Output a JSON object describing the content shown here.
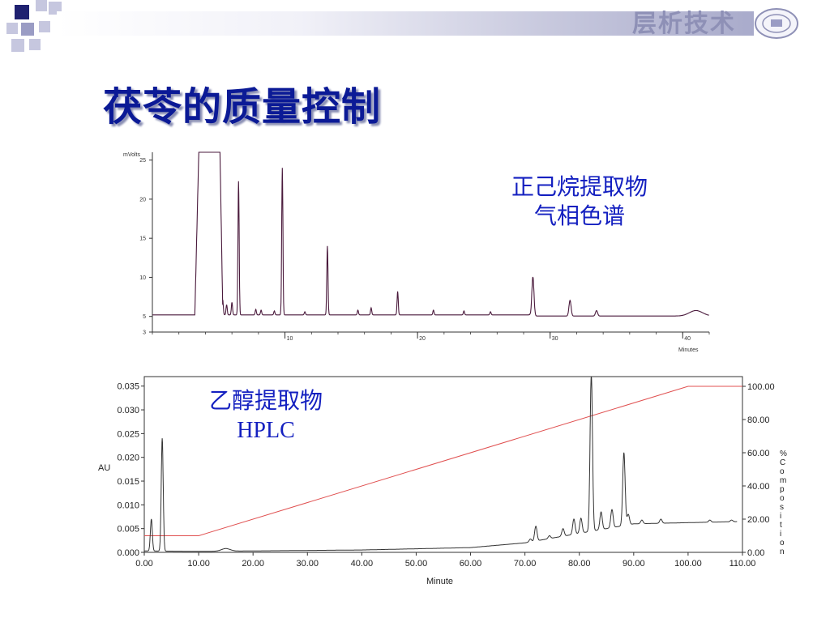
{
  "header": {
    "brand": "层析技术"
  },
  "slide": {
    "title": "茯苓的质量控制"
  },
  "colors": {
    "title": "#0b1a96",
    "caption": "#1420c0",
    "gc_trace": "#4a1a3c",
    "gradient_line": "#e05050"
  },
  "chart_data": [
    {
      "type": "line",
      "caption": [
        "正己烷提取物",
        "气相色谱"
      ],
      "ylabel": "mVolts",
      "xlabel": "Minutes",
      "xlim": [
        0,
        42
      ],
      "ylim": [
        3,
        26
      ],
      "y_ticks": [
        "25",
        "20",
        "15",
        "10",
        "5",
        "3"
      ],
      "x_ticks": [
        "10",
        "20",
        "30",
        "40"
      ],
      "baseline": 5.2,
      "solvent_front": [
        [
          3.2,
          5.2
        ],
        [
          3.5,
          26
        ],
        [
          5.1,
          26
        ],
        [
          5.3,
          6.5
        ]
      ],
      "peaks": [
        {
          "x": 5.3,
          "y": 7.3
        },
        {
          "x": 5.6,
          "y": 6.5
        },
        {
          "x": 6.0,
          "y": 6.8
        },
        {
          "x": 6.5,
          "y": 22.3
        },
        {
          "x": 7.8,
          "y": 5.9
        },
        {
          "x": 8.2,
          "y": 5.8
        },
        {
          "x": 9.2,
          "y": 5.7
        },
        {
          "x": 9.8,
          "y": 24
        },
        {
          "x": 11.5,
          "y": 5.6
        },
        {
          "x": 13.2,
          "y": 14
        },
        {
          "x": 15.5,
          "y": 5.8
        },
        {
          "x": 16.5,
          "y": 6.1
        },
        {
          "x": 18.5,
          "y": 8.2
        },
        {
          "x": 21.2,
          "y": 5.8
        },
        {
          "x": 23.5,
          "y": 5.7
        },
        {
          "x": 25.5,
          "y": 5.6
        },
        {
          "x": 28.7,
          "y": 10.2
        },
        {
          "x": 31.5,
          "y": 7.2
        },
        {
          "x": 33.5,
          "y": 5.9
        },
        {
          "x": 41.0,
          "y": 5.9
        }
      ]
    },
    {
      "type": "line",
      "caption": [
        "乙醇提取物",
        "HPLC"
      ],
      "ylabel": "AU",
      "xlabel": "Minute",
      "y2label": "%Composition",
      "xlim": [
        0,
        110
      ],
      "ylim": [
        0,
        0.037
      ],
      "y2lim": [
        0,
        100
      ],
      "x_ticks": [
        "0.00",
        "10.00",
        "20.00",
        "30.00",
        "40.00",
        "50.00",
        "60.00",
        "70.00",
        "80.00",
        "90.00",
        "100.00",
        "110.00"
      ],
      "y_ticks": [
        "0.000",
        "0.005",
        "0.010",
        "0.015",
        "0.020",
        "0.025",
        "0.030",
        "0.035"
      ],
      "y2_ticks": [
        "0.00",
        "20.00",
        "40.00",
        "60.00",
        "80.00",
        "100.00"
      ],
      "series": [
        {
          "name": "absorbance",
          "baseline_points": [
            [
              0,
              0.0003
            ],
            [
              10,
              0.0002
            ],
            [
              40,
              0.0005
            ],
            [
              60,
              0.001
            ],
            [
              70,
              0.002
            ],
            [
              80,
              0.004
            ],
            [
              90,
              0.006
            ],
            [
              110,
              0.0065
            ]
          ],
          "peaks": [
            {
              "x": 1.3,
              "y": 0.007
            },
            {
              "x": 3.3,
              "y": 0.024
            },
            {
              "x": 15.0,
              "y": 0.0008
            },
            {
              "x": 71.0,
              "y": 0.0028
            },
            {
              "x": 72.0,
              "y": 0.0055
            },
            {
              "x": 74.5,
              "y": 0.0035
            },
            {
              "x": 77.0,
              "y": 0.005
            },
            {
              "x": 79.0,
              "y": 0.007
            },
            {
              "x": 80.3,
              "y": 0.0072
            },
            {
              "x": 82.2,
              "y": 0.0375
            },
            {
              "x": 84.0,
              "y": 0.0085
            },
            {
              "x": 86.0,
              "y": 0.009
            },
            {
              "x": 88.2,
              "y": 0.021
            },
            {
              "x": 89.0,
              "y": 0.008
            },
            {
              "x": 91.5,
              "y": 0.0068
            },
            {
              "x": 95.0,
              "y": 0.007
            },
            {
              "x": 104.0,
              "y": 0.0068
            },
            {
              "x": 108.0,
              "y": 0.0068
            }
          ]
        },
        {
          "name": "gradient",
          "axis": "y2",
          "points": [
            [
              0,
              10
            ],
            [
              10,
              10
            ],
            [
              100,
              100
            ],
            [
              110,
              100
            ]
          ]
        }
      ]
    }
  ]
}
